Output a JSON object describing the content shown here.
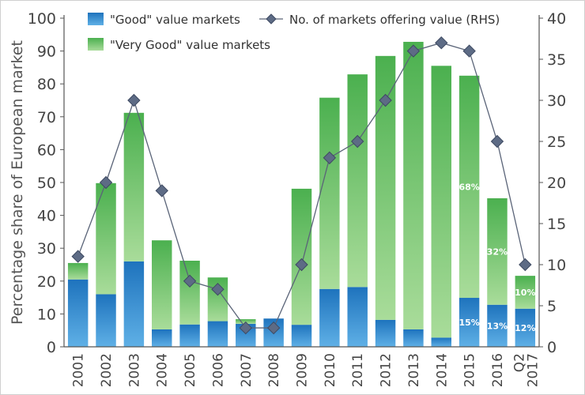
{
  "chart_data": {
    "type": "bar",
    "categories": [
      "2001",
      "2002",
      "2003",
      "2004",
      "2005",
      "2006",
      "2007",
      "2008",
      "2009",
      "2010",
      "2011",
      "2012",
      "2013",
      "2014",
      "2015",
      "2016",
      "Q2 2017"
    ],
    "ylabel": "Percentage share of European market",
    "ylim": [
      0,
      100
    ],
    "y_ticks": [
      0,
      10,
      20,
      30,
      40,
      50,
      60,
      70,
      80,
      90,
      100
    ],
    "y2lim": [
      0,
      40
    ],
    "y2_ticks": [
      0,
      5,
      10,
      15,
      20,
      25,
      30,
      35,
      40
    ],
    "legend_position": "top",
    "series": [
      {
        "name": "\"Good\" value markets",
        "kind": "bar",
        "axis": "left",
        "color": "#1f7fc4",
        "values": [
          20.5,
          16,
          26,
          5.3,
          6.8,
          7.8,
          7,
          8.6,
          6.7,
          17.6,
          18.2,
          8.2,
          5.3,
          2.8,
          14.9,
          12.8,
          11.6
        ]
      },
      {
        "name": "\"Very Good\" value markets",
        "kind": "bar",
        "axis": "left",
        "color": "#5cb85c",
        "values": [
          5,
          33.8,
          45.2,
          27.1,
          19.4,
          13.3,
          1.4,
          0,
          41.4,
          58.2,
          64.7,
          80.3,
          87.5,
          82.7,
          67.6,
          32.4,
          10
        ]
      },
      {
        "name": "No. of markets offering value (RHS)",
        "kind": "line",
        "axis": "right",
        "color": "#5a6478",
        "values": [
          11,
          20,
          30,
          19,
          8,
          7,
          2.3,
          2.3,
          10,
          23,
          25,
          30,
          36,
          37,
          36,
          25,
          10
        ]
      }
    ],
    "data_labels": [
      {
        "category": "2015",
        "series": "\"Good\" value markets",
        "text": "15%"
      },
      {
        "category": "2015",
        "series": "\"Very Good\" value markets",
        "text": "68%"
      },
      {
        "category": "2016",
        "series": "\"Good\" value markets",
        "text": "13%"
      },
      {
        "category": "2016",
        "series": "\"Very Good\" value markets",
        "text": "32%"
      },
      {
        "category": "Q2 2017",
        "series": "\"Good\" value markets",
        "text": "12%"
      },
      {
        "category": "Q2 2017",
        "series": "\"Very Good\" value markets",
        "text": "10%"
      }
    ]
  }
}
